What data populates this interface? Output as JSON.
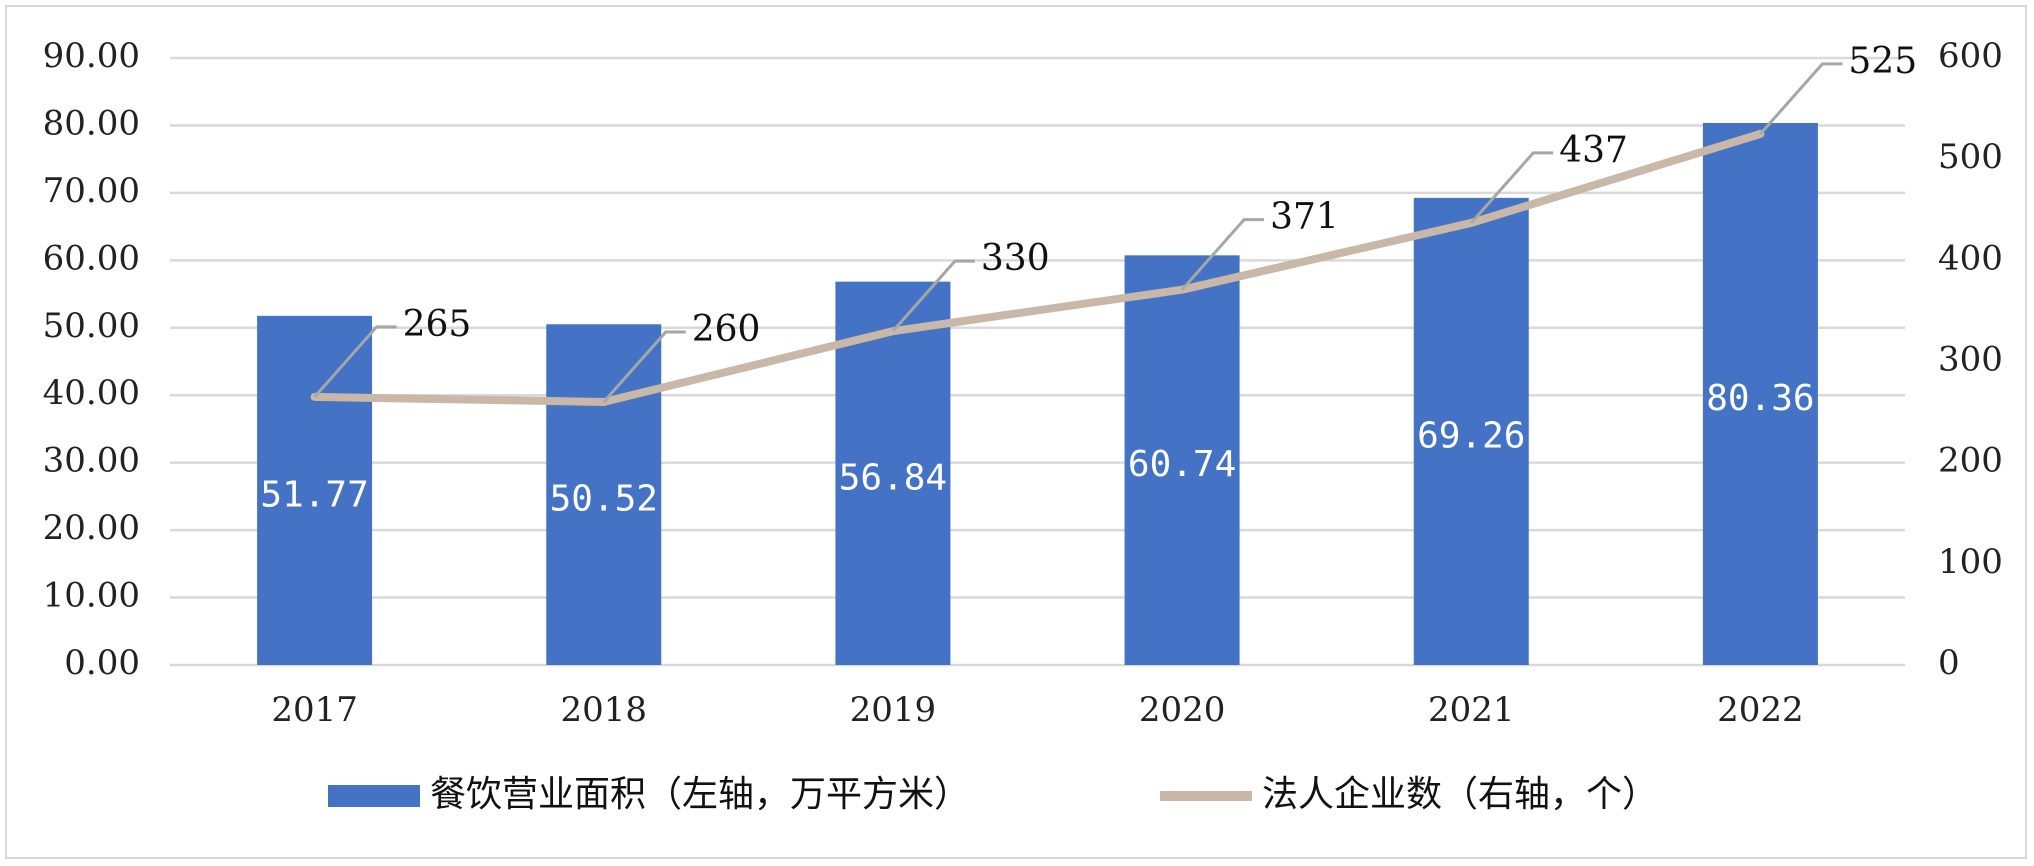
{
  "chart_data": {
    "type": "bar",
    "categories": [
      "2017",
      "2018",
      "2019",
      "2020",
      "2021",
      "2022"
    ],
    "series": [
      {
        "name": "餐饮营业面积（左轴，万平方米）",
        "type": "bar",
        "axis": "left",
        "values": [
          51.77,
          50.52,
          56.84,
          60.74,
          69.26,
          80.36
        ],
        "value_labels": [
          "51.77",
          "50.52",
          "56.84",
          "60.74",
          "69.26",
          "80.36"
        ],
        "color": "#4472C4"
      },
      {
        "name": "法人企业数（右轴，个）",
        "type": "line",
        "axis": "right",
        "values": [
          265,
          260,
          330,
          371,
          437,
          525
        ],
        "value_labels": [
          "265",
          "260",
          "330",
          "371",
          "437",
          "525"
        ],
        "color": "#C9B8A8"
      }
    ],
    "y_left": {
      "min": 0,
      "max": 90,
      "ticks": [
        "0.00",
        "10.00",
        "20.00",
        "30.00",
        "40.00",
        "50.00",
        "60.00",
        "70.00",
        "80.00",
        "90.00"
      ]
    },
    "y_right": {
      "min": 0,
      "max": 600,
      "ticks": [
        "0",
        "100",
        "200",
        "300",
        "400",
        "500",
        "600"
      ]
    },
    "grid": true,
    "legend_position": "bottom",
    "gridline_color": "#d9d9d9"
  }
}
